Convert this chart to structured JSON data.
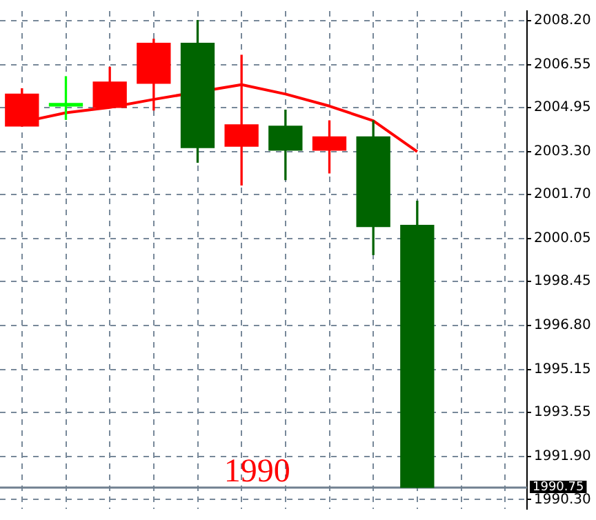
{
  "chart_data": {
    "type": "candlestick",
    "categories": [
      null,
      null,
      null,
      null,
      null,
      null,
      null,
      null,
      null,
      null,
      null,
      null
    ],
    "ohlc": [
      [
        2004.25,
        2005.65,
        2004.25,
        2005.45
      ],
      [
        2005.0,
        2006.1,
        2004.5,
        2005.05
      ],
      [
        2004.95,
        2006.45,
        2004.95,
        2005.9
      ],
      [
        2005.85,
        2007.5,
        2004.85,
        2007.35
      ],
      [
        2007.35,
        2008.2,
        2002.9,
        2003.45
      ],
      [
        2003.5,
        2006.9,
        2002.05,
        2004.3
      ],
      [
        2004.25,
        2004.85,
        2002.25,
        2003.35
      ],
      [
        2003.35,
        2004.45,
        2002.5,
        2003.85
      ],
      [
        2003.85,
        2004.45,
        1999.45,
        2000.5
      ],
      [
        2000.55,
        2001.45,
        1990.75,
        1990.75
      ],
      null,
      null
    ],
    "colors": [
      "#ff0000",
      "#00ff00",
      "#ff0000",
      "#ff0000",
      "#006400",
      "#ff0000",
      "#006400",
      "#ff0000",
      "#006400",
      "#006400",
      null,
      null
    ],
    "series": [
      {
        "type": "line",
        "color": "#ff0000",
        "values": [
          2004.4,
          2004.75,
          2004.95,
          2005.25,
          null,
          2005.8,
          2005.45,
          2005.0,
          2004.45,
          2003.3,
          null,
          null
        ]
      }
    ],
    "ylim": [
      1989.95,
      2008.55
    ],
    "yticks": [
      {
        "value": 2008.2,
        "label": "2008.20"
      },
      {
        "value": 2006.55,
        "label": "2006.55"
      },
      {
        "value": 2004.95,
        "label": "2004.95"
      },
      {
        "value": 2003.3,
        "label": "2003.30"
      },
      {
        "value": 2001.7,
        "label": "2001.70"
      },
      {
        "value": 2000.05,
        "label": "2000.05"
      },
      {
        "value": 1998.45,
        "label": "1998.45"
      },
      {
        "value": 1996.8,
        "label": "1996.80"
      },
      {
        "value": 1995.15,
        "label": "1995.15"
      },
      {
        "value": 1993.55,
        "label": "1993.55"
      },
      {
        "value": 1991.9,
        "label": "1991.90"
      },
      {
        "value": 1990.3,
        "label": "1990.30"
      }
    ],
    "ref_lines": [
      {
        "axis": "y",
        "value": 1990.75,
        "label": "1990.75",
        "color": "#708090"
      }
    ],
    "annotations": [
      "1990"
    ],
    "grid": true,
    "tick_labels": "y"
  }
}
